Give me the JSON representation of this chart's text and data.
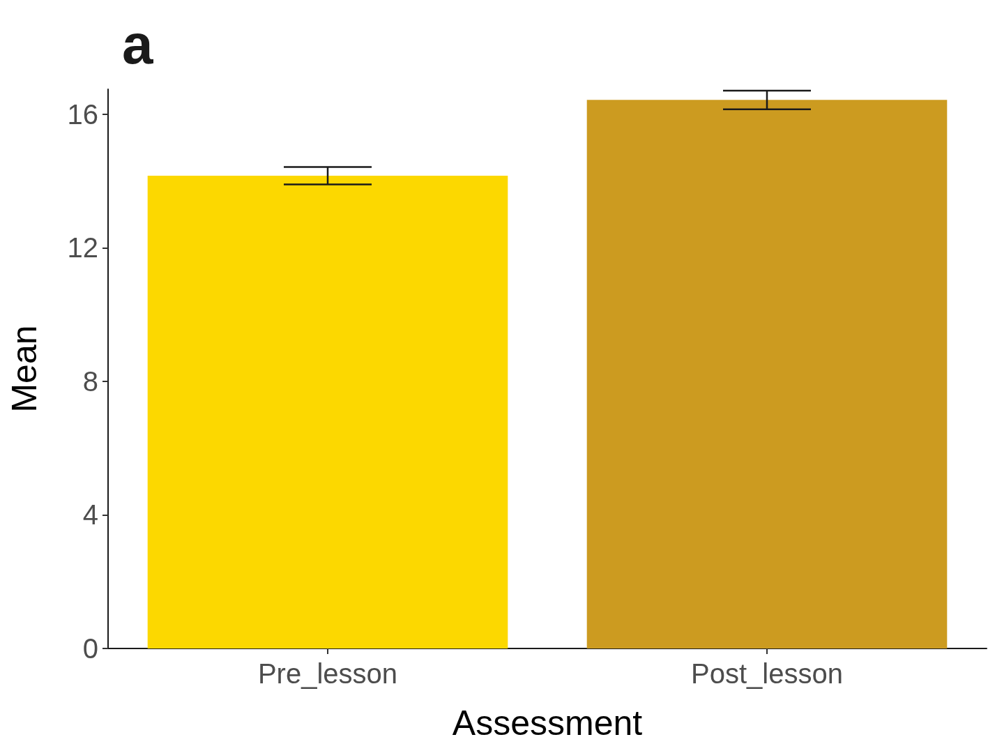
{
  "chart_data": {
    "type": "bar",
    "title": "a",
    "xlabel": "Assessment",
    "ylabel": "Mean",
    "categories": [
      "Pre_lesson",
      "Post_lesson"
    ],
    "values": [
      14.16,
      16.43
    ],
    "colors": [
      "#fcd800",
      "#cc9b20"
    ],
    "errors": [
      0.26,
      0.28
    ],
    "ylim": [
      0,
      16.75
    ],
    "yticks": [
      0,
      4,
      8,
      12,
      16
    ],
    "grid": false
  }
}
